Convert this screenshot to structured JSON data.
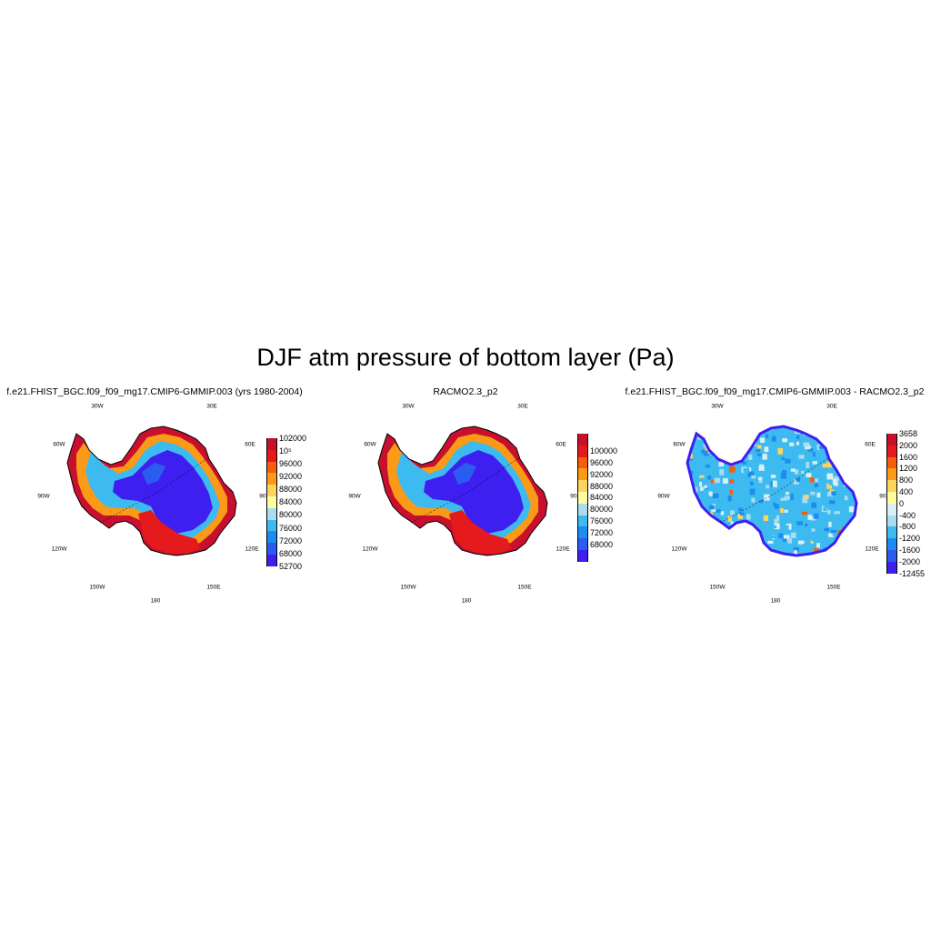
{
  "title": "DJF atm pressure of bottom layer (Pa)",
  "panels": [
    {
      "title": "f.e21.FHIST_BGC.f09_f09_mg17.CMIP6-GMMIP.003 (yrs 1980-2004)",
      "map": "model",
      "colorbar": {
        "labels": [
          "102000",
          "10⁵",
          "96000",
          "92000",
          "88000",
          "84000",
          "80000",
          "76000",
          "72000",
          "68000",
          "52700"
        ],
        "colors": [
          "#c8102e",
          "#e41a1c",
          "#f65e0b",
          "#fa9a17",
          "#fed45c",
          "#fffca0",
          "#a9dcef",
          "#3dbbf0",
          "#1c8cf0",
          "#2b5cf0",
          "#3f1ef0"
        ]
      }
    },
    {
      "title": "RACMO2.3_p2",
      "map": "racmo",
      "colorbar": {
        "labels": [
          "100000",
          "96000",
          "92000",
          "88000",
          "84000",
          "80000",
          "76000",
          "72000",
          "68000"
        ],
        "colors": [
          "#c8102e",
          "#e41a1c",
          "#f65e0b",
          "#fa9a17",
          "#fed45c",
          "#fffca0",
          "#a9dcef",
          "#3dbbf0",
          "#1c8cf0",
          "#2b5cf0",
          "#3f1ef0"
        ]
      }
    },
    {
      "title": "f.e21.FHIST_BGC.f09_f09_mg17.CMIP6-GMMIP.003 - RACMO2.3_p2",
      "map": "diff",
      "colorbar": {
        "labels": [
          "3658",
          "2000",
          "1600",
          "1200",
          "800",
          "400",
          "0",
          "-400",
          "-800",
          "-1200",
          "-1600",
          "-2000",
          "-12455"
        ],
        "colors": [
          "#c8102e",
          "#e41a1c",
          "#f65e0b",
          "#fa9a17",
          "#fed45c",
          "#fffca0",
          "#d9f0f8",
          "#a9dcef",
          "#3dbbf0",
          "#1c8cf0",
          "#2b5cf0",
          "#3f1ef0"
        ]
      }
    }
  ],
  "graticule_labels": [
    "30W",
    "30E",
    "60W",
    "60E",
    "90W",
    "90E",
    "120W",
    "120E",
    "150W",
    "150E",
    "180"
  ]
}
